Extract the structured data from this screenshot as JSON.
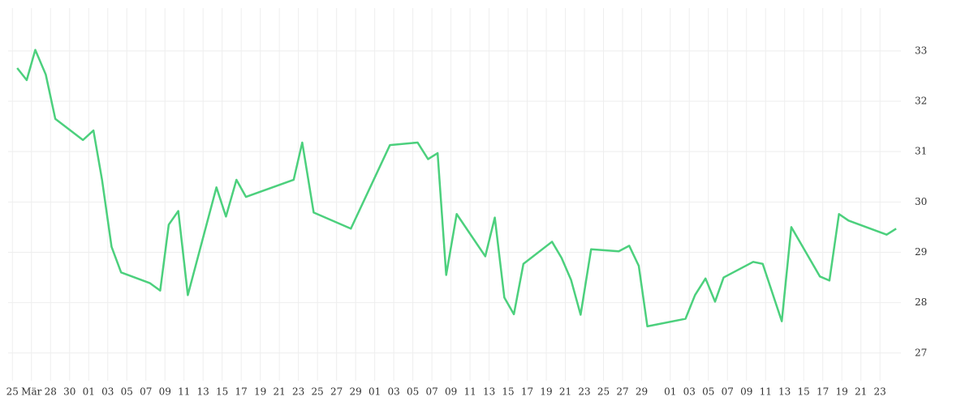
{
  "chart_data": {
    "type": "line",
    "x": [
      -0.5,
      0.5,
      1.4,
      2.5,
      3.5,
      6.4,
      7.5,
      8.4,
      9.4,
      10.4,
      13.4,
      14.5,
      15.4,
      16.4,
      17.4,
      20.4,
      21.4,
      22.5,
      23.5,
      28.5,
      29.4,
      30.6,
      34.5,
      38.6,
      41.5,
      42.6,
      43.6,
      44.5,
      45.6,
      48.6,
      49.6,
      50.6,
      51.6,
      52.6,
      55.6,
      56.6,
      57.6,
      58.6,
      59.7,
      62.6,
      63.7,
      64.7,
      65.6,
      69.6,
      70.6,
      71.7,
      72.7,
      73.6,
      76.7,
      77.7,
      79.7,
      80.7,
      83.7,
      84.7,
      85.7,
      86.7,
      90.7,
      91.7
    ],
    "series": [
      {
        "color": "#4cd07d",
        "values": [
          32.66,
          32.42,
          33.02,
          32.53,
          31.65,
          31.23,
          31.42,
          30.44,
          29.11,
          28.6,
          28.39,
          28.24,
          29.55,
          29.82,
          28.15,
          30.29,
          29.71,
          30.44,
          30.1,
          30.44,
          31.18,
          29.79,
          29.47,
          31.13,
          31.18,
          30.85,
          30.97,
          28.55,
          29.76,
          28.92,
          29.69,
          28.1,
          27.77,
          28.77,
          29.21,
          28.89,
          28.45,
          27.76,
          29.06,
          29.02,
          29.13,
          28.73,
          27.53,
          27.68,
          28.15,
          28.48,
          28.02,
          28.5,
          28.81,
          28.77,
          27.63,
          29.5,
          28.52,
          28.44,
          29.76,
          29.63,
          29.35,
          29.47
        ]
      }
    ],
    "xlim": [
      -1.45,
      92.2
    ],
    "xticks": [
      {
        "value": -1,
        "label": "25"
      },
      {
        "value": 1,
        "label": "Mär"
      },
      {
        "value": 3,
        "label": "28"
      },
      {
        "value": 5,
        "label": "30"
      },
      {
        "value": 7,
        "label": "01"
      },
      {
        "value": 9,
        "label": "03"
      },
      {
        "value": 11,
        "label": "05"
      },
      {
        "value": 13,
        "label": "07"
      },
      {
        "value": 15,
        "label": "09"
      },
      {
        "value": 17,
        "label": "11"
      },
      {
        "value": 19,
        "label": "13"
      },
      {
        "value": 21,
        "label": "15"
      },
      {
        "value": 23,
        "label": "17"
      },
      {
        "value": 25,
        "label": "19"
      },
      {
        "value": 27,
        "label": "21"
      },
      {
        "value": 29,
        "label": "23"
      },
      {
        "value": 31,
        "label": "25"
      },
      {
        "value": 33,
        "label": "27"
      },
      {
        "value": 35,
        "label": "29"
      },
      {
        "value": 37,
        "label": "01"
      },
      {
        "value": 39,
        "label": "03"
      },
      {
        "value": 41,
        "label": "05"
      },
      {
        "value": 43,
        "label": "07"
      },
      {
        "value": 45,
        "label": "09"
      },
      {
        "value": 47,
        "label": "11"
      },
      {
        "value": 49,
        "label": "13"
      },
      {
        "value": 51,
        "label": "15"
      },
      {
        "value": 53,
        "label": "17"
      },
      {
        "value": 55,
        "label": "19"
      },
      {
        "value": 57,
        "label": "21"
      },
      {
        "value": 59,
        "label": "23"
      },
      {
        "value": 61,
        "label": "25"
      },
      {
        "value": 63,
        "label": "27"
      },
      {
        "value": 65,
        "label": "29"
      },
      {
        "value": 68,
        "label": "01"
      },
      {
        "value": 70,
        "label": "03"
      },
      {
        "value": 72,
        "label": "05"
      },
      {
        "value": 74,
        "label": "07"
      },
      {
        "value": 76,
        "label": "09"
      },
      {
        "value": 78,
        "label": "11"
      },
      {
        "value": 80,
        "label": "13"
      },
      {
        "value": 82,
        "label": "15"
      },
      {
        "value": 84,
        "label": "17"
      },
      {
        "value": 86,
        "label": "19"
      },
      {
        "value": 88,
        "label": "21"
      },
      {
        "value": 90,
        "label": "23"
      }
    ],
    "ylim": [
      26.45,
      33.85
    ],
    "yticks": [
      27,
      28,
      29,
      30,
      31,
      32,
      33
    ],
    "grid": true
  }
}
